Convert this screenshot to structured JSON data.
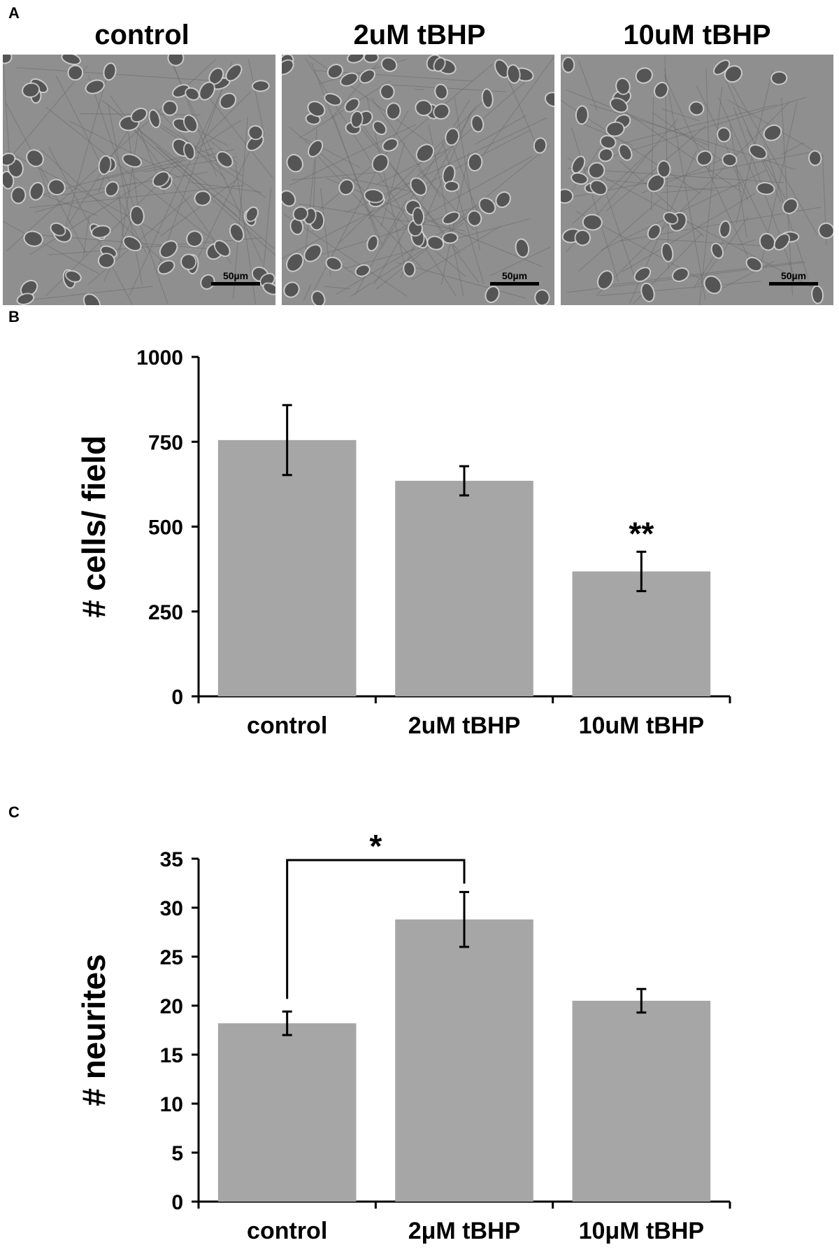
{
  "panels": {
    "a": "A",
    "b": "B",
    "c": "C"
  },
  "micrographs": [
    {
      "title": "control",
      "scale_label": "50µm",
      "cells": 70,
      "seed": 11
    },
    {
      "title": "2uM tBHP",
      "scale_label": "50µm",
      "cells": 72,
      "seed": 29
    },
    {
      "title": "10uM tBHP",
      "scale_label": "50µm",
      "cells": 52,
      "seed": 47
    }
  ],
  "colors": {
    "bar": "#a6a6a6",
    "axis": "#000000",
    "micro_bg": "#8f8f8f",
    "cell": "#555555"
  },
  "chart_data": [
    {
      "type": "bar",
      "categories": [
        "control",
        "2uM tBHP",
        "10uM tBHP"
      ],
      "values": [
        755,
        635,
        368
      ],
      "errors": [
        103,
        43,
        58
      ],
      "ylabel": "# cells/ field",
      "ylim": [
        0,
        1000
      ],
      "yticks": [
        0,
        250,
        500,
        750,
        1000
      ],
      "annotations": [
        {
          "category": "10uM tBHP",
          "text": "**"
        }
      ]
    },
    {
      "type": "bar",
      "categories": [
        "control",
        "2μM tBHP",
        "10μM tBHP"
      ],
      "values": [
        18.2,
        28.8,
        20.5
      ],
      "errors": [
        1.2,
        2.8,
        1.2
      ],
      "ylabel": "# neurites",
      "ylim": [
        0,
        35
      ],
      "yticks": [
        0,
        5,
        10,
        15,
        20,
        25,
        30,
        35
      ],
      "annotations": [
        {
          "from": "control",
          "to": "2μM tBHP",
          "text": "*"
        }
      ]
    }
  ]
}
